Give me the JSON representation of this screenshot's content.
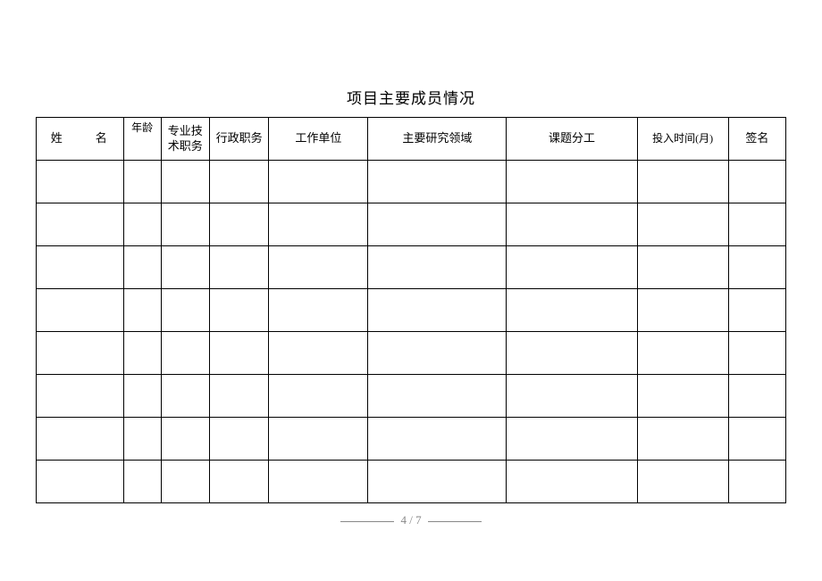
{
  "title": "项目主要成员情况",
  "table": {
    "columns": [
      {
        "label": "姓　名",
        "class": "col-name name-spaced"
      },
      {
        "label": "年龄",
        "class": "col-age th-age"
      },
      {
        "label": "专业技术职务",
        "class": "col-title"
      },
      {
        "label": "行政职务",
        "class": "col-admin"
      },
      {
        "label": "工作单位",
        "class": "col-unit"
      },
      {
        "label": "主要研究领域",
        "class": "col-field"
      },
      {
        "label": "课题分工",
        "class": "col-task"
      },
      {
        "label": "投入时间(月)",
        "class": "col-time"
      },
      {
        "label": "签名",
        "class": "col-sign"
      }
    ],
    "row_count": 8
  },
  "footer": {
    "page_current": "4",
    "page_total": "7",
    "separator": "/"
  }
}
